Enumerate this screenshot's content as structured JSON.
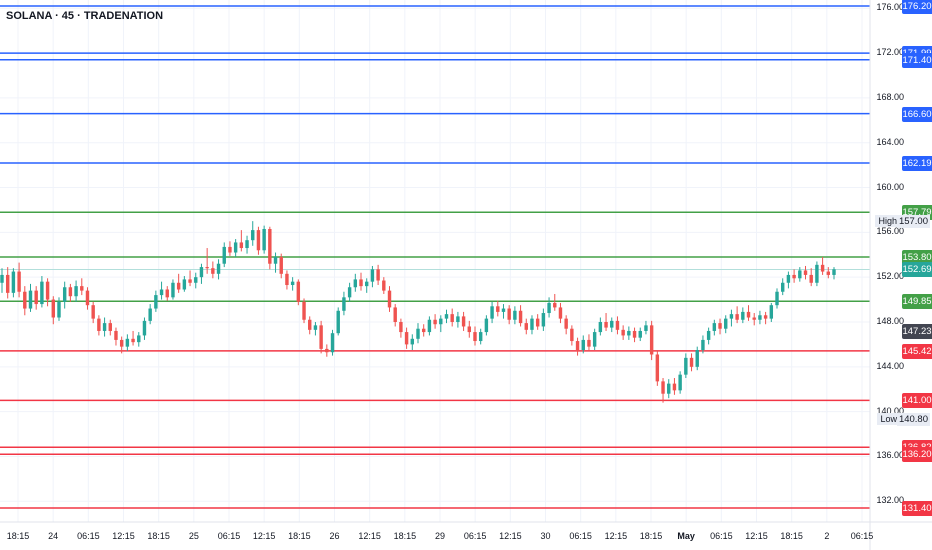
{
  "chart_title": "SOLANA · 45 · TRADENATION",
  "colors": {
    "up": "#26a69a",
    "down": "#ef5350",
    "resistance": "#2962ff",
    "support_green": "#43a047",
    "support_red": "#f23645",
    "current_price": "#26a69a",
    "last_close_tag": "#434651"
  },
  "chart_data": {
    "type": "candlestick",
    "title": "SOLANA · 45 · TRADENATION",
    "y_range": [
      130,
      177
    ],
    "y_tick_labels": [
      "176.00",
      "172.00",
      "168.00",
      "164.00",
      "160.00",
      "156.00",
      "152.00",
      "148.00",
      "144.00",
      "140.00",
      "136.00",
      "132.00"
    ],
    "x_tick_labels": [
      "18:15",
      "24",
      "06:15",
      "12:15",
      "18:15",
      "25",
      "06:15",
      "12:15",
      "18:15",
      "26",
      "12:15",
      "18:15",
      "29",
      "06:15",
      "12:15",
      "30",
      "06:15",
      "12:15",
      "18:15",
      "May",
      "06:15",
      "12:15",
      "18:15",
      "2",
      "06:15"
    ],
    "levels": [
      {
        "value": 176.2,
        "label": "176.20",
        "kind": "resistance"
      },
      {
        "value": 171.99,
        "label": "171.99",
        "kind": "resistance"
      },
      {
        "value": 171.4,
        "label": "171.40",
        "kind": "resistance"
      },
      {
        "value": 166.6,
        "label": "166.60",
        "kind": "resistance"
      },
      {
        "value": 162.19,
        "label": "162.19",
        "kind": "resistance"
      },
      {
        "value": 157.79,
        "label": "157.79",
        "kind": "support_green"
      },
      {
        "value": 153.8,
        "label": "153.80",
        "kind": "support_green"
      },
      {
        "value": 149.85,
        "label": "149.85",
        "kind": "support_green"
      },
      {
        "value": 145.42,
        "label": "145.42",
        "kind": "support_red"
      },
      {
        "value": 141.0,
        "label": "141.00",
        "kind": "support_red"
      },
      {
        "value": 136.82,
        "label": "136.82",
        "kind": "support_red"
      },
      {
        "value": 136.2,
        "label": "136.20",
        "kind": "support_red"
      },
      {
        "value": 131.4,
        "label": "131.40",
        "kind": "support_red"
      }
    ],
    "current_price": {
      "value": 152.69,
      "label": "152.69"
    },
    "last_close": {
      "value": 147.23,
      "label": "147.23"
    },
    "high": {
      "label": "High",
      "value": 157.0,
      "value_label": "157.00"
    },
    "low": {
      "label": "Low",
      "value": 140.8,
      "value_label": "140.80"
    },
    "series": [
      {
        "values": [
          [
            151.5,
            152.8,
            150.6,
            152.2
          ],
          [
            152.2,
            152.9,
            150.1,
            150.6
          ],
          [
            150.6,
            152.8,
            150.2,
            152.5
          ],
          [
            152.5,
            153.3,
            150.2,
            150.7
          ],
          [
            150.7,
            151.2,
            148.6,
            149.2
          ],
          [
            149.2,
            151.4,
            148.9,
            150.8
          ],
          [
            150.8,
            151.2,
            149.1,
            149.6
          ],
          [
            149.6,
            152.1,
            149.3,
            151.6
          ],
          [
            151.6,
            151.9,
            149.4,
            150.0
          ],
          [
            150.0,
            150.3,
            147.8,
            148.4
          ],
          [
            148.4,
            150.2,
            148.1,
            149.8
          ],
          [
            149.8,
            151.6,
            149.2,
            151.1
          ],
          [
            151.1,
            151.4,
            149.8,
            150.3
          ],
          [
            150.3,
            151.7,
            149.8,
            151.2
          ],
          [
            151.2,
            151.9,
            150.4,
            150.8
          ],
          [
            150.8,
            151.1,
            149.1,
            149.5
          ],
          [
            149.5,
            149.8,
            147.9,
            148.3
          ],
          [
            148.3,
            148.6,
            146.8,
            147.2
          ],
          [
            147.2,
            148.4,
            146.7,
            147.9
          ],
          [
            147.9,
            148.2,
            146.8,
            147.2
          ],
          [
            147.2,
            147.5,
            145.9,
            146.4
          ],
          [
            146.4,
            146.7,
            145.2,
            145.8
          ],
          [
            145.8,
            146.9,
            145.4,
            146.5
          ],
          [
            146.5,
            147.2,
            145.9,
            146.2
          ],
          [
            146.2,
            147.1,
            145.8,
            146.8
          ],
          [
            146.8,
            148.4,
            146.4,
            148.1
          ],
          [
            148.1,
            149.6,
            147.8,
            149.2
          ],
          [
            149.2,
            150.8,
            148.9,
            150.4
          ],
          [
            150.4,
            151.6,
            150.0,
            150.9
          ],
          [
            150.9,
            151.2,
            149.9,
            150.2
          ],
          [
            150.2,
            151.8,
            150.0,
            151.5
          ],
          [
            151.5,
            152.3,
            150.6,
            150.9
          ],
          [
            150.9,
            152.1,
            150.7,
            151.8
          ],
          [
            151.8,
            152.6,
            151.2,
            151.5
          ],
          [
            151.5,
            152.4,
            151.0,
            152.0
          ],
          [
            152.0,
            153.2,
            151.4,
            152.9
          ],
          [
            152.9,
            154.6,
            152.3,
            152.8
          ],
          [
            152.8,
            153.4,
            151.9,
            152.3
          ],
          [
            152.3,
            153.6,
            151.8,
            153.2
          ],
          [
            153.2,
            155.1,
            152.9,
            154.7
          ],
          [
            154.7,
            155.2,
            153.9,
            154.2
          ],
          [
            154.2,
            155.4,
            153.8,
            155.1
          ],
          [
            155.1,
            156.2,
            154.3,
            154.6
          ],
          [
            154.6,
            155.7,
            154.1,
            155.3
          ],
          [
            155.3,
            157.0,
            154.8,
            156.2
          ],
          [
            156.2,
            156.5,
            154.0,
            154.4
          ],
          [
            154.4,
            156.6,
            154.1,
            156.3
          ],
          [
            156.3,
            156.5,
            152.7,
            153.2
          ],
          [
            153.2,
            154.2,
            152.4,
            153.8
          ],
          [
            153.8,
            154.1,
            151.9,
            152.3
          ],
          [
            152.3,
            152.6,
            150.9,
            151.3
          ],
          [
            151.3,
            152.0,
            150.8,
            151.6
          ],
          [
            151.6,
            151.8,
            149.5,
            149.8
          ],
          [
            149.8,
            150.1,
            147.9,
            148.2
          ],
          [
            148.2,
            148.5,
            146.9,
            147.3
          ],
          [
            147.3,
            148.0,
            146.8,
            147.7
          ],
          [
            147.7,
            148.1,
            145.2,
            145.6
          ],
          [
            145.6,
            146.0,
            144.9,
            145.3
          ],
          [
            145.3,
            147.3,
            145.0,
            147.0
          ],
          [
            147.0,
            149.3,
            146.8,
            149.0
          ],
          [
            149.0,
            150.7,
            148.6,
            150.2
          ],
          [
            150.2,
            151.5,
            149.8,
            151.1
          ],
          [
            151.1,
            152.3,
            150.7,
            151.8
          ],
          [
            151.8,
            152.4,
            150.8,
            151.2
          ],
          [
            151.2,
            151.9,
            150.6,
            151.6
          ],
          [
            151.6,
            153.0,
            151.1,
            152.7
          ],
          [
            152.7,
            153.1,
            151.3,
            151.7
          ],
          [
            151.7,
            152.0,
            150.5,
            150.8
          ],
          [
            150.8,
            151.2,
            148.9,
            149.3
          ],
          [
            149.3,
            149.6,
            147.6,
            148.0
          ],
          [
            148.0,
            148.3,
            146.6,
            147.1
          ],
          [
            147.1,
            147.5,
            145.6,
            146.0
          ],
          [
            146.0,
            146.9,
            145.5,
            146.5
          ],
          [
            146.5,
            147.9,
            146.1,
            147.4
          ],
          [
            147.4,
            147.8,
            146.7,
            147.1
          ],
          [
            147.1,
            148.5,
            146.8,
            148.2
          ],
          [
            148.2,
            148.7,
            147.4,
            147.8
          ],
          [
            147.8,
            148.6,
            147.1,
            148.3
          ],
          [
            148.3,
            149.1,
            147.9,
            148.7
          ],
          [
            148.7,
            149.2,
            147.6,
            148.0
          ],
          [
            148.0,
            148.9,
            147.5,
            148.5
          ],
          [
            148.5,
            148.9,
            147.2,
            147.6
          ],
          [
            147.6,
            148.1,
            146.6,
            147.1
          ],
          [
            147.1,
            147.6,
            145.9,
            146.3
          ],
          [
            146.3,
            147.4,
            146.0,
            147.1
          ],
          [
            147.1,
            148.6,
            146.8,
            148.3
          ],
          [
            148.3,
            149.8,
            147.9,
            149.4
          ],
          [
            149.4,
            149.9,
            148.5,
            148.9
          ],
          [
            148.9,
            149.6,
            148.3,
            149.2
          ],
          [
            149.2,
            149.5,
            147.8,
            148.2
          ],
          [
            148.2,
            149.4,
            147.8,
            149.0
          ],
          [
            149.0,
            149.5,
            147.6,
            147.9
          ],
          [
            147.9,
            148.3,
            146.9,
            147.3
          ],
          [
            147.3,
            148.6,
            146.9,
            148.3
          ],
          [
            148.3,
            148.7,
            147.3,
            147.6
          ],
          [
            147.6,
            149.2,
            147.2,
            148.8
          ],
          [
            148.8,
            150.2,
            148.4,
            149.7
          ],
          [
            149.7,
            150.5,
            149.0,
            149.3
          ],
          [
            149.3,
            149.7,
            147.9,
            148.3
          ],
          [
            148.3,
            148.6,
            146.9,
            147.4
          ],
          [
            147.4,
            147.7,
            145.9,
            146.3
          ],
          [
            146.3,
            146.6,
            145.0,
            145.5
          ],
          [
            145.5,
            146.8,
            145.2,
            146.4
          ],
          [
            146.4,
            146.9,
            145.4,
            145.8
          ],
          [
            145.8,
            147.4,
            145.5,
            147.1
          ],
          [
            147.1,
            148.4,
            146.8,
            148.0
          ],
          [
            148.0,
            148.8,
            147.2,
            147.5
          ],
          [
            147.5,
            148.4,
            147.1,
            148.1
          ],
          [
            148.1,
            148.5,
            146.9,
            147.3
          ],
          [
            147.3,
            147.7,
            146.4,
            146.8
          ],
          [
            146.8,
            147.6,
            146.4,
            147.2
          ],
          [
            147.2,
            147.5,
            146.2,
            146.6
          ],
          [
            146.6,
            147.5,
            146.3,
            147.2
          ],
          [
            147.2,
            148.1,
            146.9,
            147.7
          ],
          [
            147.7,
            148.1,
            144.6,
            145.1
          ],
          [
            145.1,
            145.4,
            142.3,
            142.7
          ],
          [
            142.7,
            143.0,
            140.8,
            141.6
          ],
          [
            141.6,
            142.9,
            141.2,
            142.5
          ],
          [
            142.5,
            143.0,
            141.5,
            141.9
          ],
          [
            141.9,
            143.6,
            141.6,
            143.3
          ],
          [
            143.3,
            145.2,
            143.0,
            144.8
          ],
          [
            144.8,
            145.2,
            143.6,
            144.0
          ],
          [
            144.0,
            145.8,
            143.7,
            145.5
          ],
          [
            145.5,
            146.8,
            145.2,
            146.4
          ],
          [
            146.4,
            147.5,
            146.0,
            147.2
          ],
          [
            147.2,
            148.2,
            146.8,
            147.9
          ],
          [
            147.9,
            148.3,
            146.9,
            147.4
          ],
          [
            147.4,
            148.6,
            147.0,
            148.3
          ],
          [
            148.3,
            149.1,
            147.6,
            148.7
          ],
          [
            148.7,
            149.4,
            147.9,
            148.2
          ],
          [
            148.2,
            149.3,
            147.9,
            148.9
          ],
          [
            148.9,
            149.5,
            148.1,
            148.4
          ],
          [
            148.4,
            148.8,
            147.7,
            148.2
          ],
          [
            148.2,
            149.0,
            147.8,
            148.6
          ],
          [
            148.6,
            148.9,
            147.8,
            148.3
          ],
          [
            148.3,
            149.7,
            148.0,
            149.5
          ],
          [
            149.5,
            151.0,
            149.2,
            150.7
          ],
          [
            150.7,
            151.9,
            150.4,
            151.5
          ],
          [
            151.5,
            152.5,
            151.0,
            152.2
          ],
          [
            152.2,
            152.7,
            151.5,
            151.9
          ],
          [
            151.9,
            152.9,
            151.6,
            152.6
          ],
          [
            152.6,
            153.0,
            151.8,
            152.2
          ],
          [
            152.2,
            152.8,
            151.2,
            151.5
          ],
          [
            151.5,
            153.4,
            151.2,
            153.1
          ],
          [
            153.1,
            153.8,
            152.2,
            152.5
          ],
          [
            152.5,
            152.9,
            151.9,
            152.2
          ],
          [
            152.2,
            152.9,
            151.8,
            152.7
          ]
        ]
      }
    ]
  }
}
